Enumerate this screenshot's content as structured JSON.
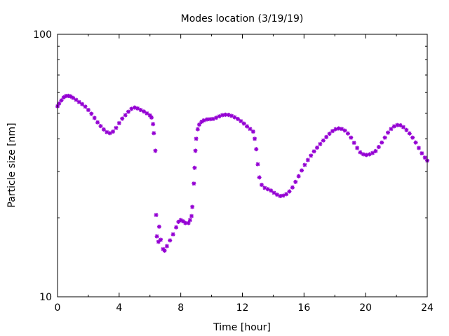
{
  "chart_data": {
    "type": "scatter",
    "title": "Modes location (3/19/19)",
    "xlabel": "Time [hour]",
    "ylabel": "Particle size [nm]",
    "xlim": [
      0,
      24
    ],
    "ylim": [
      10,
      100
    ],
    "yscale": "log",
    "x_ticks": [
      0,
      4,
      8,
      12,
      16,
      20,
      24
    ],
    "x_tick_labels": [
      "0",
      "4",
      "8",
      "12",
      "16",
      "20",
      "24"
    ],
    "y_tick_labels": [
      "10",
      "100"
    ],
    "grid": false,
    "legend": "none",
    "marker": "asterisk",
    "color": "#9400d3",
    "series": [
      {
        "points": [
          [
            0.0,
            53.2
          ],
          [
            0.1,
            54.5
          ],
          [
            0.25,
            56.0
          ],
          [
            0.4,
            57.5
          ],
          [
            0.55,
            58.2
          ],
          [
            0.7,
            58.3
          ],
          [
            0.85,
            58.0
          ],
          [
            1.0,
            57.3
          ],
          [
            1.2,
            56.3
          ],
          [
            1.4,
            55.2
          ],
          [
            1.6,
            54.2
          ],
          [
            1.8,
            53.0
          ],
          [
            2.0,
            51.5
          ],
          [
            2.2,
            49.8
          ],
          [
            2.4,
            48.0
          ],
          [
            2.6,
            46.2
          ],
          [
            2.8,
            44.7
          ],
          [
            3.0,
            43.4
          ],
          [
            3.2,
            42.4
          ],
          [
            3.4,
            42.0
          ],
          [
            3.6,
            42.6
          ],
          [
            3.8,
            44.0
          ],
          [
            4.0,
            45.9
          ],
          [
            4.2,
            47.7
          ],
          [
            4.4,
            49.2
          ],
          [
            4.6,
            50.7
          ],
          [
            4.8,
            52.0
          ],
          [
            5.0,
            52.6
          ],
          [
            5.2,
            52.2
          ],
          [
            5.4,
            51.5
          ],
          [
            5.6,
            50.8
          ],
          [
            5.8,
            50.0
          ],
          [
            6.0,
            49.1
          ],
          [
            6.1,
            48.2
          ],
          [
            6.2,
            45.5
          ],
          [
            6.25,
            42.0
          ],
          [
            6.35,
            36.0
          ],
          [
            6.4,
            20.5
          ],
          [
            6.45,
            17.0
          ],
          [
            6.55,
            16.2
          ],
          [
            6.6,
            18.5
          ],
          [
            6.7,
            16.5
          ],
          [
            6.85,
            15.2
          ],
          [
            6.95,
            15.0
          ],
          [
            7.1,
            15.6
          ],
          [
            7.3,
            16.4
          ],
          [
            7.5,
            17.3
          ],
          [
            7.7,
            18.4
          ],
          [
            7.85,
            19.3
          ],
          [
            8.0,
            19.6
          ],
          [
            8.15,
            19.4
          ],
          [
            8.3,
            19.1
          ],
          [
            8.5,
            19.1
          ],
          [
            8.6,
            19.6
          ],
          [
            8.7,
            20.3
          ],
          [
            8.75,
            22.0
          ],
          [
            8.85,
            27.0
          ],
          [
            8.9,
            31.0
          ],
          [
            8.95,
            36.0
          ],
          [
            9.0,
            40.0
          ],
          [
            9.1,
            43.5
          ],
          [
            9.2,
            45.3
          ],
          [
            9.35,
            46.4
          ],
          [
            9.5,
            47.0
          ],
          [
            9.7,
            47.4
          ],
          [
            9.9,
            47.5
          ],
          [
            10.1,
            47.6
          ],
          [
            10.3,
            48.1
          ],
          [
            10.5,
            48.7
          ],
          [
            10.7,
            49.2
          ],
          [
            10.9,
            49.4
          ],
          [
            11.1,
            49.3
          ],
          [
            11.3,
            48.9
          ],
          [
            11.5,
            48.3
          ],
          [
            11.7,
            47.6
          ],
          [
            11.9,
            46.7
          ],
          [
            12.1,
            45.7
          ],
          [
            12.3,
            44.6
          ],
          [
            12.5,
            43.6
          ],
          [
            12.7,
            42.6
          ],
          [
            12.8,
            40.0
          ],
          [
            12.9,
            36.5
          ],
          [
            13.0,
            32.0
          ],
          [
            13.1,
            28.5
          ],
          [
            13.25,
            26.7
          ],
          [
            13.45,
            26.0
          ],
          [
            13.65,
            25.7
          ],
          [
            13.85,
            25.4
          ],
          [
            14.05,
            24.9
          ],
          [
            14.25,
            24.5
          ],
          [
            14.45,
            24.2
          ],
          [
            14.65,
            24.3
          ],
          [
            14.85,
            24.6
          ],
          [
            15.05,
            25.2
          ],
          [
            15.25,
            26.1
          ],
          [
            15.45,
            27.4
          ],
          [
            15.65,
            28.8
          ],
          [
            15.85,
            30.3
          ],
          [
            16.05,
            31.8
          ],
          [
            16.25,
            33.2
          ],
          [
            16.45,
            34.5
          ],
          [
            16.65,
            35.8
          ],
          [
            16.85,
            37.0
          ],
          [
            17.05,
            38.2
          ],
          [
            17.25,
            39.4
          ],
          [
            17.45,
            40.6
          ],
          [
            17.65,
            41.8
          ],
          [
            17.85,
            42.8
          ],
          [
            18.05,
            43.5
          ],
          [
            18.25,
            43.8
          ],
          [
            18.45,
            43.6
          ],
          [
            18.65,
            43.0
          ],
          [
            18.85,
            41.9
          ],
          [
            19.05,
            40.4
          ],
          [
            19.25,
            38.6
          ],
          [
            19.45,
            36.9
          ],
          [
            19.65,
            35.5
          ],
          [
            19.85,
            34.9
          ],
          [
            20.05,
            34.7
          ],
          [
            20.25,
            34.9
          ],
          [
            20.45,
            35.3
          ],
          [
            20.65,
            35.9
          ],
          [
            20.85,
            37.2
          ],
          [
            21.05,
            38.7
          ],
          [
            21.25,
            40.4
          ],
          [
            21.45,
            42.2
          ],
          [
            21.65,
            43.6
          ],
          [
            21.85,
            44.6
          ],
          [
            22.05,
            45.1
          ],
          [
            22.25,
            45.0
          ],
          [
            22.45,
            44.3
          ],
          [
            22.65,
            43.2
          ],
          [
            22.85,
            41.9
          ],
          [
            23.05,
            40.4
          ],
          [
            23.25,
            38.7
          ],
          [
            23.45,
            36.9
          ],
          [
            23.65,
            35.2
          ],
          [
            23.85,
            33.9
          ],
          [
            24.0,
            33.0
          ]
        ]
      }
    ]
  }
}
